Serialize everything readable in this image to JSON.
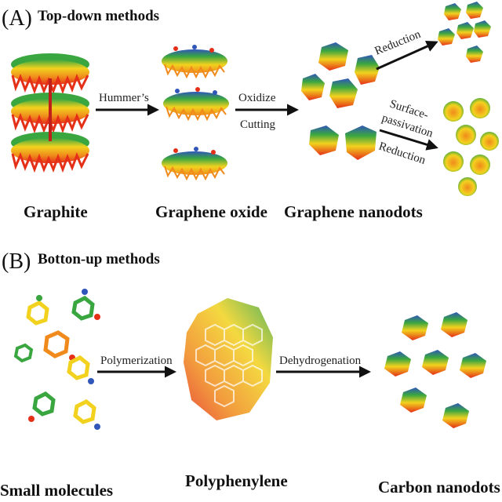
{
  "panel_a": {
    "letter": "(A)",
    "title": "Top-down methods",
    "captions": {
      "graphite": "Graphite",
      "graphene_oxide": "Graphene oxide",
      "graphene_nanodots": "Graphene nanodots"
    },
    "arrows": {
      "hummers": "Hummer’s",
      "oxidize": "Oxidize",
      "cutting": "Cutting",
      "reduction_top": "Reduction",
      "surface": "Surface-",
      "passivation": "passivation",
      "reduction_bottom": "Reduction"
    }
  },
  "panel_b": {
    "letter": "(B)",
    "title": "Botton-up methods",
    "captions": {
      "small_molecules": "Small molecules",
      "polyphenylene": "Polyphenylene",
      "carbon_nanodots": "Carbon nanodots"
    },
    "arrows": {
      "polymerization": "Polymerization",
      "dehydrogenation": "Dehydrogenation"
    }
  },
  "colors": {
    "red": "#e53018",
    "orange": "#f08a1c",
    "yellow": "#f2d21e",
    "green": "#3aa640",
    "blue": "#2f56b8",
    "gray": "#b8b8b8"
  }
}
